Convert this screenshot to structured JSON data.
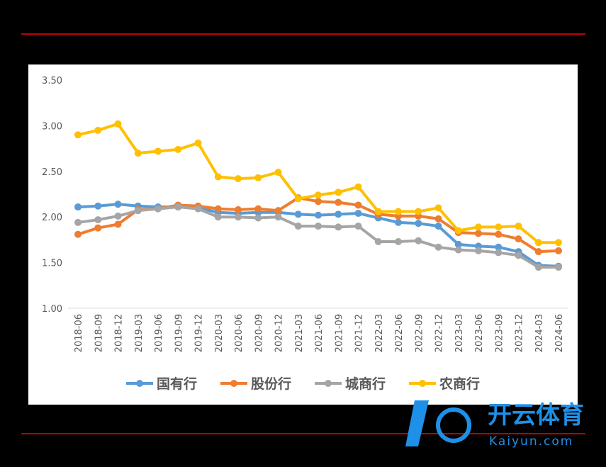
{
  "chart_data": {
    "type": "line",
    "categories": [
      "2018-06",
      "2018-09",
      "2018-12",
      "2019-03",
      "2019-06",
      "2019-09",
      "2019-12",
      "2020-03",
      "2020-06",
      "2020-09",
      "2020-12",
      "2021-03",
      "2021-06",
      "2021-09",
      "2021-12",
      "2022-03",
      "2022-06",
      "2022-09",
      "2022-12",
      "2023-03",
      "2023-06",
      "2023-09",
      "2023-12",
      "2024-03",
      "2024-06"
    ],
    "series": [
      {
        "name": "国有行",
        "color": "#5b9bd5",
        "values": [
          2.11,
          2.12,
          2.14,
          2.12,
          2.11,
          2.11,
          2.1,
          2.05,
          2.04,
          2.05,
          2.05,
          2.03,
          2.02,
          2.03,
          2.04,
          1.99,
          1.94,
          1.93,
          1.9,
          1.7,
          1.68,
          1.67,
          1.62,
          1.47,
          1.46
        ]
      },
      {
        "name": "股份行",
        "color": "#ed7d31",
        "values": [
          1.81,
          1.88,
          1.92,
          2.08,
          2.09,
          2.13,
          2.12,
          2.09,
          2.08,
          2.09,
          2.07,
          2.21,
          2.17,
          2.16,
          2.13,
          2.03,
          2.01,
          2.01,
          1.98,
          1.83,
          1.82,
          1.81,
          1.76,
          1.62,
          1.63
        ]
      },
      {
        "name": "城商行",
        "color": "#a5a5a5",
        "values": [
          1.94,
          1.97,
          2.01,
          2.07,
          2.09,
          2.11,
          2.09,
          2.0,
          2.0,
          1.99,
          2.0,
          1.9,
          1.9,
          1.89,
          1.9,
          1.73,
          1.73,
          1.74,
          1.67,
          1.64,
          1.63,
          1.61,
          1.58,
          1.45,
          1.45
        ]
      },
      {
        "name": "农商行",
        "color": "#ffc000",
        "values": [
          2.9,
          2.95,
          3.02,
          2.7,
          2.72,
          2.74,
          2.81,
          2.44,
          2.42,
          2.43,
          2.49,
          2.2,
          2.24,
          2.27,
          2.33,
          2.06,
          2.06,
          2.06,
          2.1,
          1.85,
          1.89,
          1.89,
          1.9,
          1.72,
          1.72
        ]
      }
    ],
    "ylim": [
      1.0,
      3.5
    ],
    "yticks": [
      {
        "value": 1.0,
        "label": "1.00"
      },
      {
        "value": 1.5,
        "label": "1.50"
      },
      {
        "value": 2.0,
        "label": "2.00"
      },
      {
        "value": 2.5,
        "label": "2.50"
      },
      {
        "value": 3.0,
        "label": "3.00"
      },
      {
        "value": 3.5,
        "label": "3.50"
      }
    ],
    "legend": "bottom"
  },
  "watermark": {
    "title": "开云体育",
    "site": "Kaiyun.com"
  }
}
